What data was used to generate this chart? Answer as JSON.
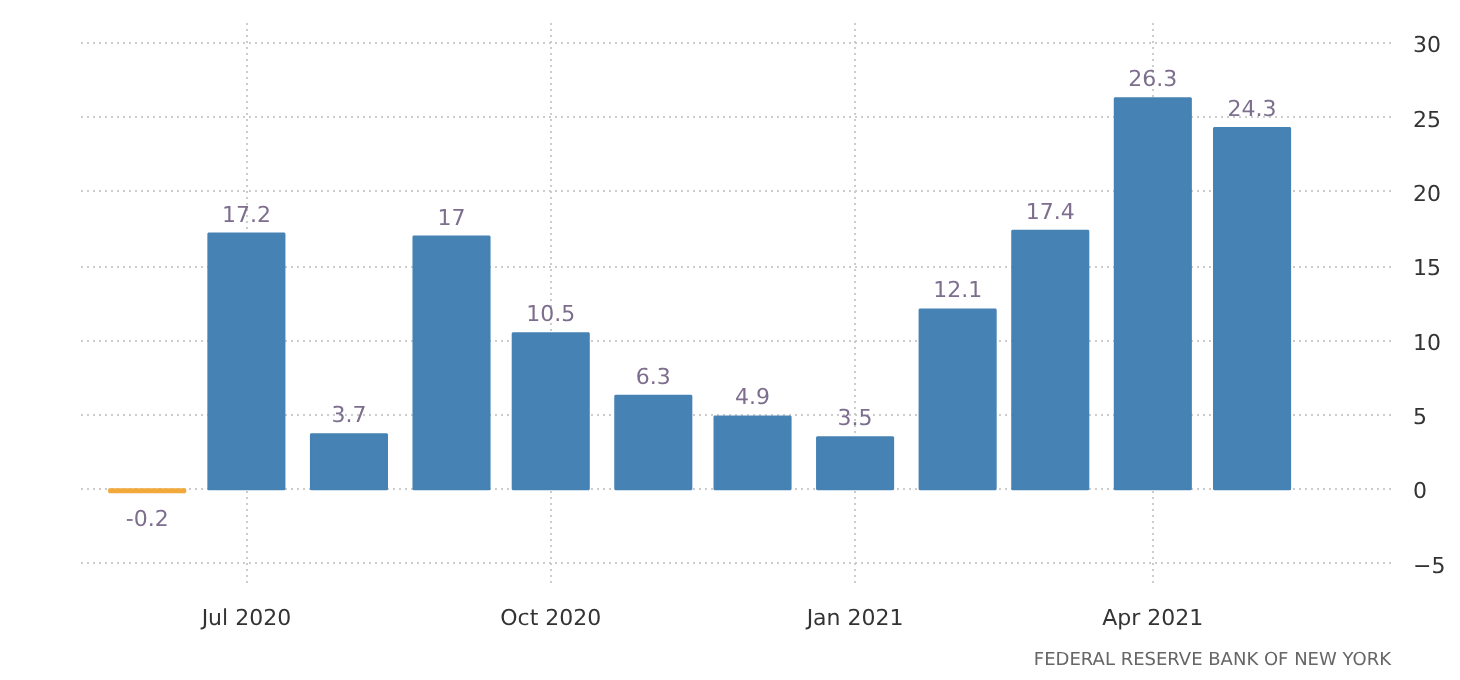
{
  "chart_data": {
    "type": "bar",
    "x": [
      "2020-06-01",
      "2020-07-01",
      "2020-08-01",
      "2020-09-01",
      "2020-10-01",
      "2020-11-01",
      "2020-12-01",
      "2021-01-01",
      "2021-02-01",
      "2021-03-01",
      "2021-04-01",
      "2021-05-01"
    ],
    "values": [
      -0.2,
      17.2,
      3.7,
      17,
      10.5,
      6.3,
      4.9,
      3.5,
      12.1,
      17.4,
      26.3,
      24.3
    ],
    "colors": [
      "#f2a93b",
      "#4682b4",
      "#4682b4",
      "#4682b4",
      "#4682b4",
      "#4682b4",
      "#4682b4",
      "#4682b4",
      "#4682b4",
      "#4682b4",
      "#4682b4",
      "#4682b4"
    ],
    "data_labels": true,
    "xlim": [
      "2020-05-12",
      "2021-06-12"
    ],
    "xticks": [
      {
        "value": "2020-07-01",
        "label": "Jul 2020"
      },
      {
        "value": "2020-10-01",
        "label": "Oct 2020"
      },
      {
        "value": "2021-01-01",
        "label": "Jan 2021"
      },
      {
        "value": "2021-04-01",
        "label": "Apr 2021"
      }
    ],
    "ylim": [
      -6.3,
      31.5
    ],
    "yticks": [
      -5,
      0,
      5,
      10,
      15,
      20,
      25,
      30
    ],
    "grid": true,
    "annotations": [
      "FEDERAL RESERVE BANK OF NEW YORK"
    ]
  }
}
